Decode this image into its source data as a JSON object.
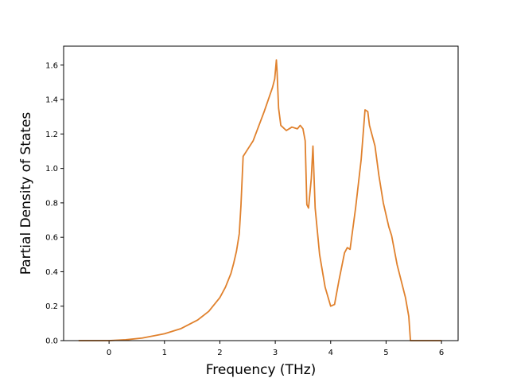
{
  "chart_data": {
    "type": "line",
    "title": "",
    "xlabel": "Frequency (THz)",
    "ylabel": "Partial Density of States",
    "xlim": [
      -0.82,
      6.3
    ],
    "ylim": [
      0.0,
      1.71
    ],
    "x_ticks": [
      0,
      1,
      2,
      3,
      4,
      5,
      6
    ],
    "y_ticks": [
      0.0,
      0.2,
      0.4,
      0.6,
      0.8,
      1.0,
      1.2,
      1.4,
      1.6
    ],
    "grid": false,
    "legend": "none",
    "series": [
      {
        "color": "#e0812d",
        "x": [
          -0.55,
          0.0,
          0.3,
          0.6,
          1.0,
          1.3,
          1.6,
          1.8,
          2.0,
          2.1,
          2.2,
          2.25,
          2.3,
          2.35,
          2.38,
          2.42,
          2.5,
          2.6,
          2.8,
          2.95,
          2.99,
          3.02,
          3.03,
          3.06,
          3.1,
          3.2,
          3.3,
          3.4,
          3.45,
          3.5,
          3.54,
          3.57,
          3.6,
          3.65,
          3.68,
          3.72,
          3.8,
          3.9,
          4.0,
          4.07,
          4.15,
          4.25,
          4.3,
          4.35,
          4.45,
          4.55,
          4.62,
          4.67,
          4.7,
          4.8,
          4.87,
          4.95,
          5.05,
          5.1,
          5.2,
          5.35,
          5.41,
          5.44,
          5.5,
          6.0
        ],
        "y": [
          0.0,
          0.0,
          0.005,
          0.015,
          0.04,
          0.07,
          0.12,
          0.17,
          0.25,
          0.31,
          0.39,
          0.45,
          0.52,
          0.62,
          0.78,
          1.07,
          1.11,
          1.16,
          1.33,
          1.47,
          1.52,
          1.63,
          1.58,
          1.35,
          1.25,
          1.22,
          1.24,
          1.23,
          1.25,
          1.23,
          1.16,
          0.79,
          0.77,
          0.94,
          1.13,
          0.77,
          0.5,
          0.31,
          0.2,
          0.21,
          0.35,
          0.51,
          0.54,
          0.53,
          0.77,
          1.05,
          1.34,
          1.33,
          1.25,
          1.13,
          0.96,
          0.8,
          0.66,
          0.61,
          0.44,
          0.25,
          0.14,
          0.0,
          0.0,
          0.0
        ]
      }
    ]
  }
}
